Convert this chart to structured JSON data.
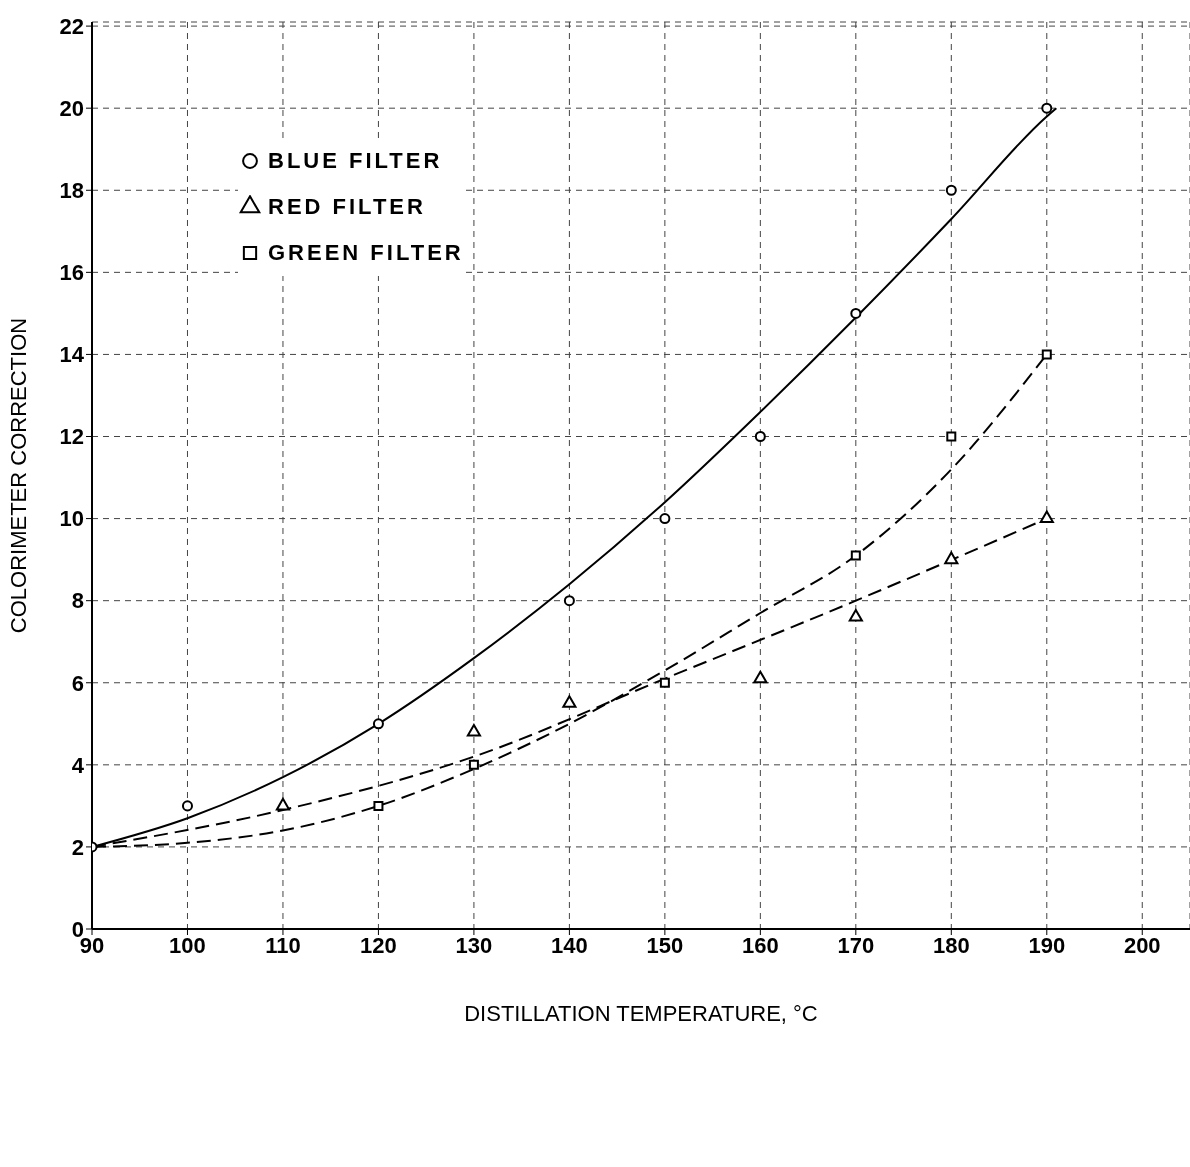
{
  "chart_data": {
    "type": "scatter",
    "xlabel": "DISTILLATION TEMPERATURE, °C",
    "ylabel": "COLORIMETER CORRECTION",
    "xlim": [
      90,
      205
    ],
    "ylim": [
      0,
      22.1
    ],
    "xticks": [
      90,
      100,
      110,
      120,
      130,
      140,
      150,
      160,
      170,
      180,
      190,
      200
    ],
    "yticks": [
      0,
      2,
      4,
      6,
      8,
      10,
      12,
      14,
      16,
      18,
      20,
      22
    ],
    "grid": true,
    "legend": "top left",
    "series": [
      {
        "name": "BLUE FILTER",
        "color": "#000000",
        "marker": "circle",
        "x": [
          90,
          100,
          120,
          140,
          150,
          160,
          170,
          180,
          190
        ],
        "values": [
          2,
          3,
          5,
          8,
          10,
          12,
          15,
          18,
          20
        ]
      },
      {
        "name": "RED FILTER",
        "color": "#000000",
        "marker": "triangle",
        "x": [
          110,
          130,
          140,
          160,
          170,
          180,
          190
        ],
        "values": [
          3,
          4.8,
          5.5,
          6.1,
          7.6,
          9,
          10
        ]
      },
      {
        "name": "GREEN FILTER",
        "color": "#000000",
        "marker": "square",
        "x": [
          120,
          130,
          150,
          170,
          180,
          190
        ],
        "values": [
          3,
          4,
          6,
          9.1,
          12,
          14
        ]
      },
      {
        "type": "line",
        "color": "#000000",
        "line_style": "solid",
        "marker": "none",
        "x": [
          90,
          100,
          110,
          120,
          130,
          140,
          150,
          160,
          170,
          180,
          190,
          191
        ],
        "values": [
          2,
          2.7,
          3.7,
          5,
          6.6,
          8.4,
          10.4,
          12.6,
          14.9,
          17.3,
          19.8,
          20
        ]
      },
      {
        "type": "line",
        "color": "#000000",
        "line_style": "dashed",
        "marker": "none",
        "x": [
          90,
          110,
          130,
          150,
          170,
          190
        ],
        "values": [
          2,
          2.9,
          4.2,
          6.1,
          8,
          10
        ]
      },
      {
        "type": "line",
        "color": "#000000",
        "line_style": "dashed",
        "marker": "none",
        "x": [
          90,
          100,
          110,
          120,
          130,
          140,
          150,
          160,
          170,
          180,
          190
        ],
        "values": [
          2,
          2.1,
          2.4,
          3,
          3.9,
          5,
          6.3,
          7.7,
          9.1,
          11.2,
          14
        ]
      }
    ]
  }
}
